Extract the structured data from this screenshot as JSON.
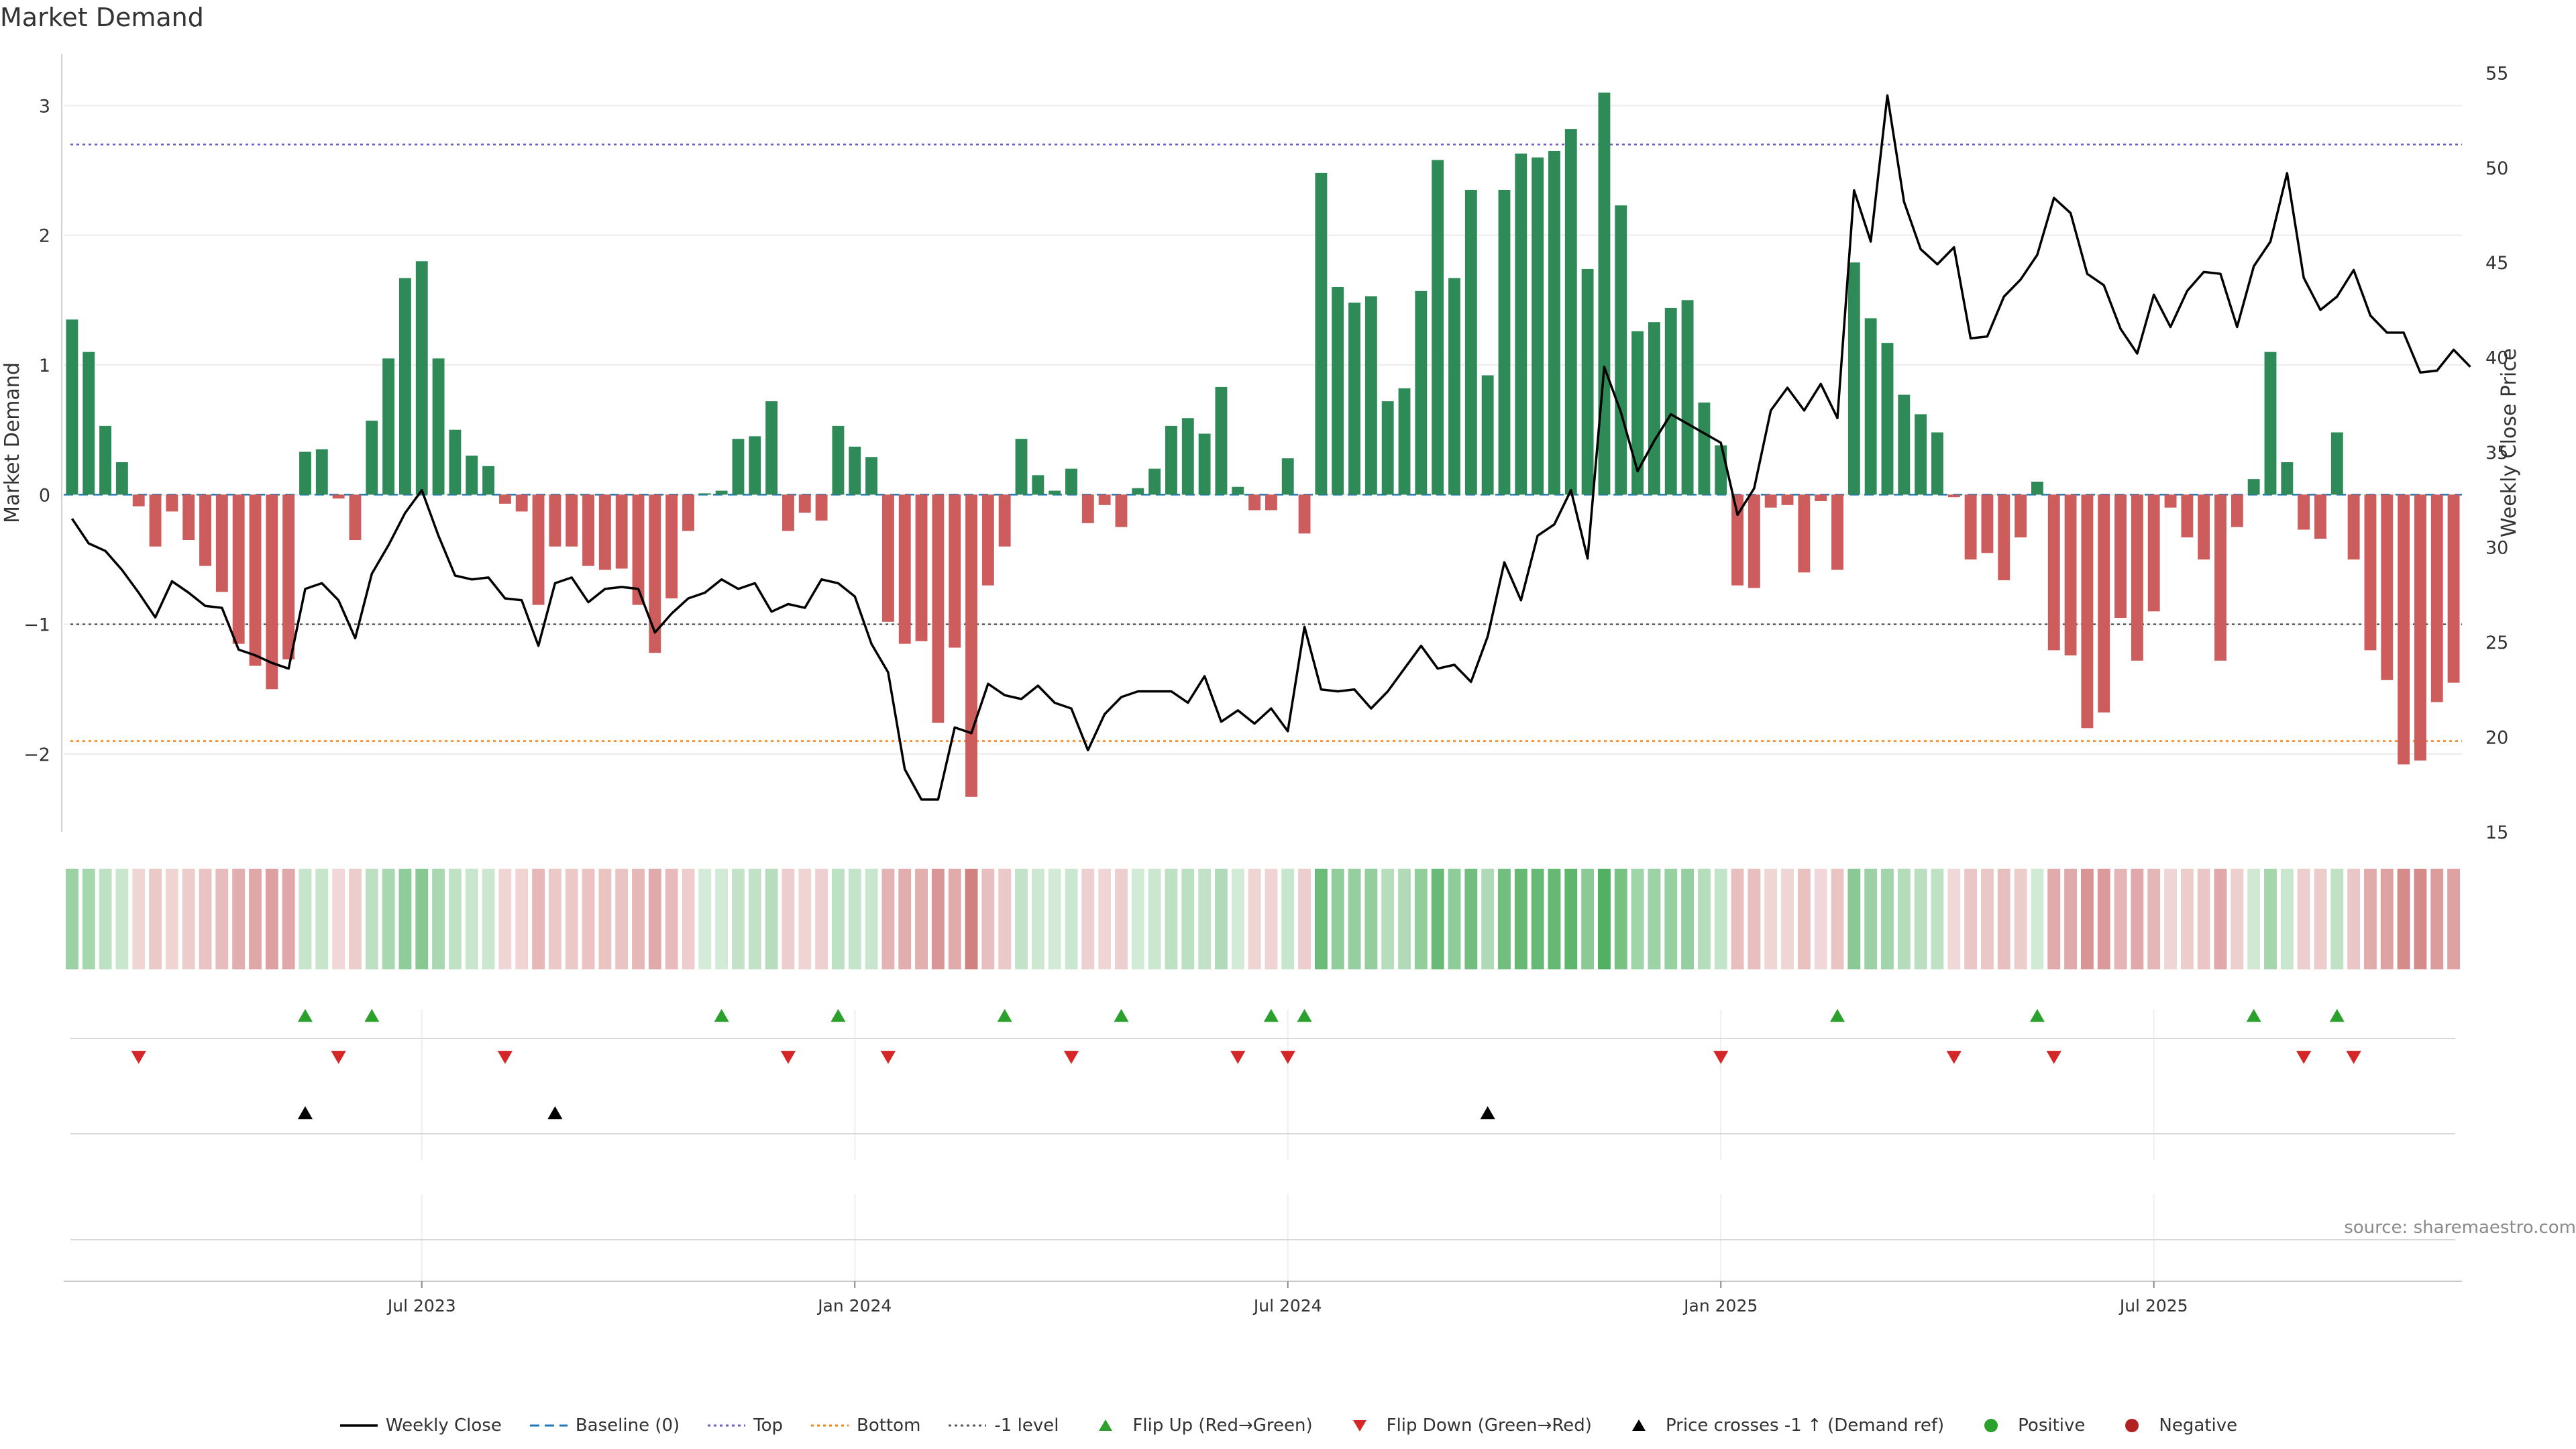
{
  "chart_data": {
    "type": "bar",
    "title": "Market Demand",
    "ylabel_left": "Market Demand",
    "ylabel_right": "Weekly Close Price",
    "ylim_left": [
      -2.6,
      3.4
    ],
    "ylim_right": [
      15,
      56
    ],
    "yticks_left": [
      -2,
      -1,
      0,
      1,
      2,
      3
    ],
    "yticks_right": [
      15,
      20,
      25,
      30,
      35,
      40,
      45,
      50,
      55
    ],
    "reference_lines": {
      "top": 2.7,
      "bottom": -1.9,
      "minus_one": -1
    },
    "x_ticks": [
      {
        "label": "Jul 2023",
        "index": 21
      },
      {
        "label": "Jan 2024",
        "index": 47
      },
      {
        "label": "Jul 2024",
        "index": 73
      },
      {
        "label": "Jan 2025",
        "index": 99
      },
      {
        "label": "Jul 2025",
        "index": 125
      }
    ],
    "series": [
      {
        "name": "Market Demand",
        "values": [
          1.35,
          1.1,
          0.53,
          0.25,
          -0.09,
          -0.4,
          -0.13,
          -0.35,
          -0.55,
          -0.75,
          -1.15,
          -1.32,
          -1.5,
          -1.27,
          0.33,
          0.35,
          -0.03,
          -0.35,
          0.57,
          1.05,
          1.67,
          1.8,
          1.05,
          0.5,
          0.3,
          0.22,
          -0.07,
          -0.13,
          -0.85,
          -0.4,
          -0.4,
          -0.55,
          -0.58,
          -0.57,
          -0.85,
          -1.22,
          -0.8,
          -0.28,
          0.01,
          0.03,
          0.43,
          0.45,
          0.72,
          -0.28,
          -0.14,
          -0.2,
          0.53,
          0.37,
          0.29,
          -0.98,
          -1.15,
          -1.13,
          -1.76,
          -1.18,
          -2.33,
          -0.7,
          -0.4,
          0.43,
          0.15,
          0.03,
          0.2,
          -0.22,
          -0.08,
          -0.25,
          0.05,
          0.2,
          0.53,
          0.59,
          0.47,
          0.83,
          0.06,
          -0.12,
          -0.12,
          0.28,
          -0.3,
          2.48,
          1.6,
          1.48,
          1.53,
          0.72,
          0.82,
          1.57,
          2.58,
          1.67,
          2.35,
          0.92,
          2.35,
          2.63,
          2.6,
          2.65,
          2.82,
          1.74,
          3.1,
          2.23,
          1.26,
          1.33,
          1.44,
          1.5,
          0.71,
          0.38,
          -0.7,
          -0.72,
          -0.1,
          -0.08,
          -0.6,
          -0.05,
          -0.58,
          1.79,
          1.36,
          1.17,
          0.77,
          0.62,
          0.48,
          -0.02,
          -0.5,
          -0.45,
          -0.66,
          -0.33,
          0.1,
          -1.2,
          -1.24,
          -1.8,
          -1.68,
          -0.95,
          -1.28,
          -0.9,
          -0.1,
          -0.33,
          -0.5,
          -1.28,
          -0.25,
          0.12,
          1.1,
          0.25,
          -0.27,
          -0.34,
          0.48,
          -0.5,
          -1.2,
          -1.43,
          -2.08,
          -2.05,
          -1.6,
          -1.45
        ]
      },
      {
        "name": "Weekly Close",
        "axis": "right",
        "values": [
          31.5,
          30.2,
          29.8,
          28.8,
          27.6,
          26.3,
          28.2,
          27.6,
          26.9,
          26.8,
          24.6,
          24.3,
          23.9,
          23.6,
          27.8,
          28.1,
          27.2,
          25.2,
          28.6,
          30.1,
          31.8,
          33,
          30.6,
          28.5,
          28.3,
          28.4,
          27.3,
          27.2,
          24.8,
          28.1,
          28.4,
          27.1,
          27.8,
          27.9,
          27.8,
          25.5,
          26.5,
          27.3,
          27.6,
          28.3,
          27.8,
          28.1,
          26.6,
          27,
          26.8,
          28.3,
          28.1,
          27.4,
          24.9,
          23.4,
          18.3,
          16.7,
          16.7,
          20.5,
          20.2,
          22.8,
          22.2,
          22,
          22.7,
          21.8,
          21.5,
          19.3,
          21.2,
          22.1,
          22.4,
          22.4,
          22.4,
          21.8,
          23.2,
          20.8,
          21.4,
          20.7,
          21.5,
          20.3,
          25.8,
          22.5,
          22.4,
          22.5,
          21.5,
          22.4,
          23.6,
          24.8,
          23.6,
          23.8,
          22.9,
          25.3,
          29.2,
          27.2,
          30.6,
          31.2,
          33,
          29.4,
          39.5,
          37.1,
          34,
          35.6,
          37,
          36.5,
          36,
          35.5,
          31.7,
          33.1,
          37.2,
          38.4,
          37.2,
          38.6,
          36.8,
          48.8,
          46.1,
          53.8,
          48.2,
          45.7,
          44.9,
          45.8,
          41,
          41.1,
          43.2,
          44.1,
          45.4,
          48.4,
          47.6,
          44.4,
          43.8,
          41.5,
          40.2,
          43.3,
          41.6,
          43.5,
          44.5,
          44.4,
          41.6,
          44.8,
          46.1,
          49.7,
          44.2,
          42.5,
          43.2,
          44.6,
          42.2,
          41.3,
          41.3,
          39.2,
          39.3,
          40.4,
          39.5
        ]
      }
    ],
    "flip_up_indices": [
      14,
      18,
      39,
      46,
      56,
      63,
      72,
      74,
      106,
      118,
      131,
      136
    ],
    "flip_down_indices": [
      4,
      16,
      26,
      43,
      49,
      60,
      70,
      73,
      99,
      113,
      119,
      134,
      137
    ],
    "price_cross_indices": [
      14,
      29,
      85
    ],
    "legend": [
      {
        "label": "Weekly Close",
        "symbol": "solid-line",
        "color": "#000000"
      },
      {
        "label": "Baseline (0)",
        "symbol": "dashed-line",
        "color": "#1f77b4"
      },
      {
        "label": "Top",
        "symbol": "dotted-line",
        "color": "#6a5acd"
      },
      {
        "label": "Bottom",
        "symbol": "dotted-line",
        "color": "#ff7f0e"
      },
      {
        "label": "-1 level",
        "symbol": "dotted-line",
        "color": "#555555"
      },
      {
        "label": "Flip Up (Red→Green)",
        "symbol": "triangle-up",
        "color": "#2ca02c"
      },
      {
        "label": "Flip Down (Green→Red)",
        "symbol": "triangle-down",
        "color": "#d62728"
      },
      {
        "label": "Price crosses -1 ↑ (Demand ref)",
        "symbol": "triangle-up",
        "color": "#000000"
      },
      {
        "label": "Positive",
        "symbol": "dot",
        "color": "#2ca02c"
      },
      {
        "label": "Negative",
        "symbol": "dot",
        "color": "#b22222"
      }
    ],
    "source": "source: sharemaestro.com"
  },
  "colors": {
    "positive_bar": "#2e8b57",
    "negative_bar": "#cd5c5c",
    "heat_positive": "#52b062",
    "heat_negative": "#c86464",
    "flip_up": "#2ca02c",
    "flip_down": "#d62728"
  }
}
